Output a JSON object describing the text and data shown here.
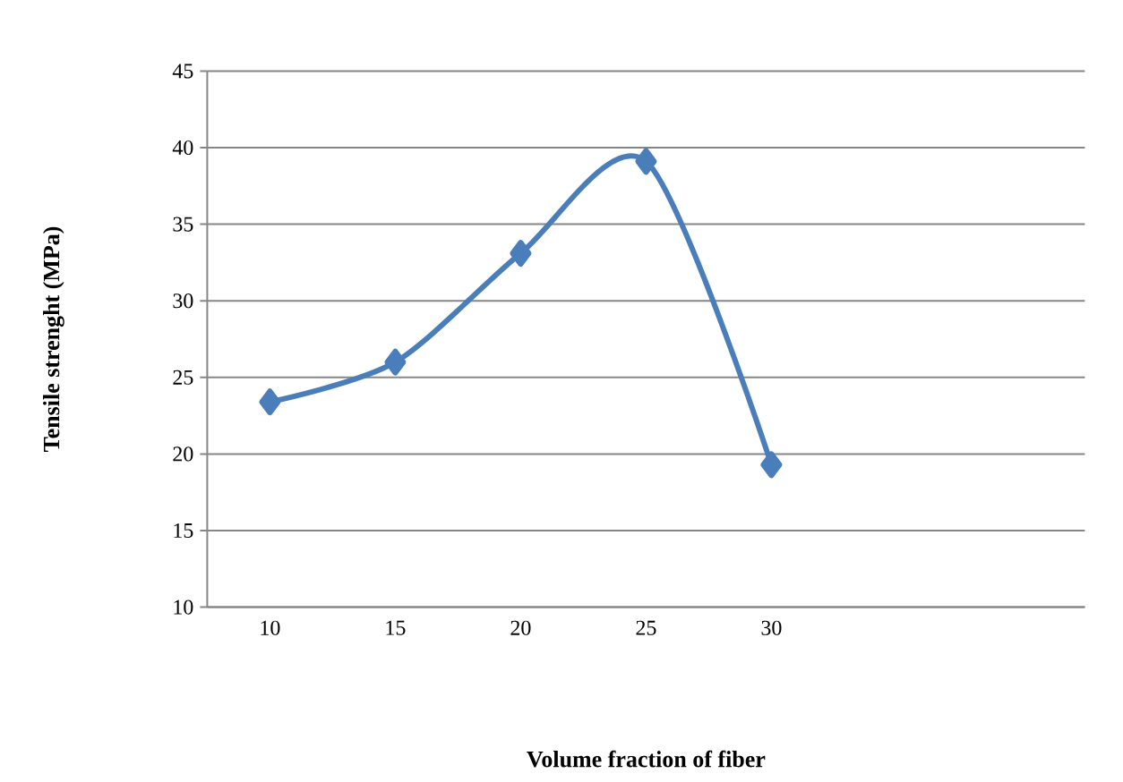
{
  "chart_data": {
    "type": "line",
    "xlabel": "Volume fraction of fiber",
    "ylabel": "Tensile strenght (MPa)",
    "categories": [
      "10",
      "15",
      "20",
      "25",
      "30",
      null,
      null
    ],
    "values": [
      23.4,
      26,
      33.1,
      39.1,
      19.3,
      null,
      null
    ],
    "color": "#4a7ebb",
    "marker": "diamond",
    "line_style": "solid",
    "grid": "y",
    "ylim": [
      10,
      45
    ],
    "yticks": [
      10,
      15,
      20,
      25,
      30,
      35,
      40,
      45
    ]
  }
}
